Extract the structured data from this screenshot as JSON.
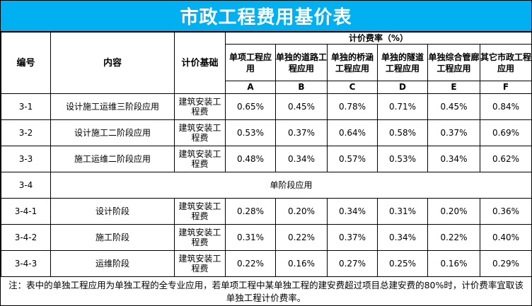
{
  "title": "市政工程费用基价表",
  "headers": {
    "code": "编号",
    "content": "内容",
    "basis": "计价基础",
    "rate_group": "计价费率（%）",
    "columns": [
      {
        "label": "单项工程应用",
        "letter": "A"
      },
      {
        "label": "单独的道路工程应用",
        "letter": "B"
      },
      {
        "label": "单独的桥涵工程应用",
        "letter": "C"
      },
      {
        "label": "单独的隧道工程应用",
        "letter": "D"
      },
      {
        "label": "单独综合管廊工程应用",
        "letter": "E"
      },
      {
        "label": "其它市政工程应用",
        "letter": "F"
      }
    ]
  },
  "rows": [
    {
      "code": "3-1",
      "content": "设计施工运维三阶段应用",
      "basis": "建筑安装工程费",
      "values": [
        "0.65%",
        "0.45%",
        "0.78%",
        "0.71%",
        "0.45%",
        "0.84%"
      ]
    },
    {
      "code": "3-2",
      "content": "设计施工二阶段应用",
      "basis": "建筑安装工程费",
      "values": [
        "0.53%",
        "0.37%",
        "0.64%",
        "0.58%",
        "0.37%",
        "0.69%"
      ]
    },
    {
      "code": "3-3",
      "content": "施工运维二阶段应用",
      "basis": "建筑安装工程费",
      "values": [
        "0.48%",
        "0.34%",
        "0.57%",
        "0.53%",
        "0.34%",
        "0.62%"
      ]
    },
    {
      "code": "3-4",
      "content": "单阶段应用",
      "section": true
    },
    {
      "code": "3-4-1",
      "content": "设计阶段",
      "basis": "建筑安装工程费",
      "values": [
        "0.28%",
        "0.20%",
        "0.34%",
        "0.31%",
        "0.20%",
        "0.36%"
      ]
    },
    {
      "code": "3-4-2",
      "content": "施工阶段",
      "basis": "建筑安装工程费",
      "values": [
        "0.31%",
        "0.22%",
        "0.37%",
        "0.34%",
        "0.22%",
        "0.40%"
      ]
    },
    {
      "code": "3-4-3",
      "content": "运维阶段",
      "basis": "建筑安装工程费",
      "values": [
        "0.22%",
        "0.16%",
        "0.27%",
        "0.25%",
        "0.16%",
        "0.29%"
      ]
    }
  ],
  "note": "注：表中的单独工程应用为单独工程的全专业应用，若单项工程中某单独工程的建安费超过项目总建安费的80%时，计价费率宜取该单独工程计价费率。",
  "colors": {
    "title_bg": "#00b0f0",
    "title_text": "#ffffff",
    "border": "#000000"
  }
}
